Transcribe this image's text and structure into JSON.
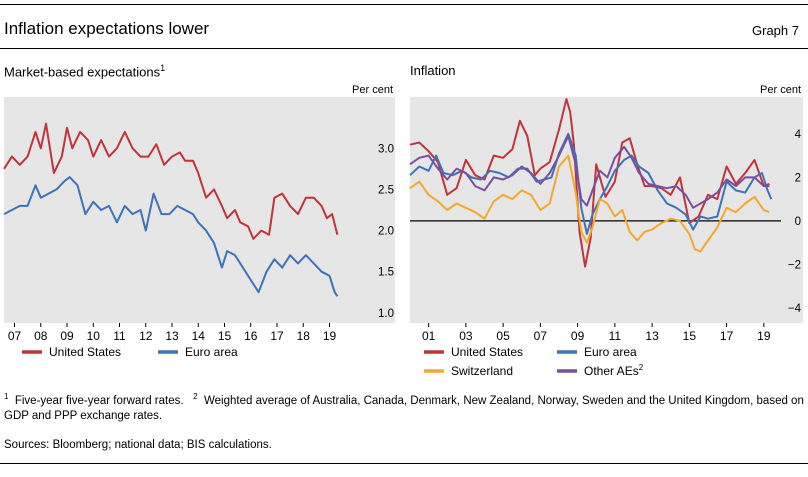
{
  "header": {
    "title": "Inflation expectations lower",
    "graph_label": "Graph 7"
  },
  "footnotes": {
    "note1_marker": "1",
    "note1": "Five-year five-year forward rates.",
    "note2_marker": "2",
    "note2": "Weighted average of Australia, Canada, Denmark, New Zealand, Norway, Sweden and the United Kingdom, based on GDP and PPP exchange rates.",
    "sources": "Sources: Bloomberg; national data; BIS calculations."
  },
  "colors": {
    "us": "#c0343c",
    "euro": "#3d73b8",
    "swiss": "#f4a928",
    "other": "#7a4fa0",
    "panel_bg": "#e6e6e6",
    "zero_line": "#000000"
  },
  "chart_data": [
    {
      "type": "line",
      "title": "Market-based expectations",
      "title_sup": "1",
      "unit_label": "Per cent",
      "y_axis_side": "right",
      "ylim": [
        0.9,
        3.6
      ],
      "y_ticks": [
        1.0,
        1.5,
        2.0,
        2.5,
        3.0
      ],
      "y_tick_labels": [
        "1.0",
        "1.5",
        "2.0",
        "2.5",
        "3.0"
      ],
      "xlim": [
        2006.6,
        2019.4
      ],
      "x_ticks": [
        2007,
        2008,
        2009,
        2010,
        2011,
        2012,
        2013,
        2014,
        2015,
        2016,
        2017,
        2018,
        2019
      ],
      "x_tick_labels": [
        "07",
        "08",
        "09",
        "10",
        "11",
        "12",
        "13",
        "14",
        "15",
        "16",
        "17",
        "18",
        "19"
      ],
      "grid": false,
      "legend_position": "bottom",
      "series": [
        {
          "name": "United States",
          "color_key": "us",
          "x": [
            2006.6,
            2006.9,
            2007.2,
            2007.5,
            2007.8,
            2008.0,
            2008.2,
            2008.5,
            2008.8,
            2009.0,
            2009.2,
            2009.5,
            2009.8,
            2010.0,
            2010.3,
            2010.6,
            2010.9,
            2011.2,
            2011.5,
            2011.8,
            2012.1,
            2012.4,
            2012.7,
            2013.0,
            2013.3,
            2013.5,
            2013.8,
            2014.0,
            2014.3,
            2014.6,
            2014.9,
            2015.1,
            2015.4,
            2015.6,
            2015.9,
            2016.1,
            2016.4,
            2016.7,
            2016.9,
            2017.2,
            2017.5,
            2017.8,
            2018.1,
            2018.4,
            2018.7,
            2018.9,
            2019.1,
            2019.3
          ],
          "y": [
            2.75,
            2.9,
            2.8,
            2.9,
            3.2,
            3.0,
            3.3,
            2.7,
            2.9,
            3.25,
            3.0,
            3.2,
            3.1,
            2.9,
            3.1,
            2.9,
            3.0,
            3.2,
            3.0,
            2.9,
            2.9,
            3.05,
            2.8,
            2.9,
            2.95,
            2.85,
            2.85,
            2.7,
            2.4,
            2.5,
            2.3,
            2.15,
            2.25,
            2.1,
            2.05,
            1.9,
            2.0,
            1.95,
            2.4,
            2.45,
            2.3,
            2.2,
            2.4,
            2.4,
            2.3,
            2.15,
            2.2,
            1.95
          ]
        },
        {
          "name": "Euro area",
          "color_key": "euro",
          "x": [
            2006.6,
            2006.9,
            2007.2,
            2007.5,
            2007.8,
            2008.0,
            2008.3,
            2008.6,
            2008.9,
            2009.1,
            2009.4,
            2009.7,
            2010.0,
            2010.3,
            2010.6,
            2010.9,
            2011.2,
            2011.5,
            2011.8,
            2012.0,
            2012.3,
            2012.6,
            2012.9,
            2013.2,
            2013.5,
            2013.8,
            2014.0,
            2014.3,
            2014.6,
            2014.9,
            2015.1,
            2015.4,
            2015.7,
            2016.0,
            2016.3,
            2016.6,
            2016.9,
            2017.2,
            2017.5,
            2017.8,
            2018.1,
            2018.4,
            2018.7,
            2019.0,
            2019.2,
            2019.3
          ],
          "y": [
            2.2,
            2.25,
            2.3,
            2.3,
            2.55,
            2.4,
            2.45,
            2.5,
            2.6,
            2.65,
            2.55,
            2.2,
            2.35,
            2.25,
            2.3,
            2.1,
            2.3,
            2.2,
            2.25,
            2.0,
            2.45,
            2.2,
            2.2,
            2.3,
            2.25,
            2.2,
            2.1,
            2.0,
            1.85,
            1.55,
            1.75,
            1.7,
            1.55,
            1.4,
            1.25,
            1.5,
            1.65,
            1.55,
            1.7,
            1.6,
            1.7,
            1.6,
            1.5,
            1.45,
            1.25,
            1.2
          ]
        }
      ]
    },
    {
      "type": "line",
      "title": "Inflation",
      "unit_label": "Per cent",
      "y_axis_side": "right",
      "ylim": [
        -4.6,
        5.6
      ],
      "y_ticks": [
        -4,
        -2,
        0,
        2,
        4
      ],
      "y_tick_labels": [
        "−4",
        "−2",
        "0",
        "2",
        "4"
      ],
      "xlim": [
        2000.0,
        2019.6
      ],
      "x_ticks": [
        2001,
        2003,
        2005,
        2007,
        2009,
        2011,
        2013,
        2015,
        2017,
        2019
      ],
      "x_tick_labels": [
        "01",
        "03",
        "05",
        "07",
        "09",
        "11",
        "13",
        "15",
        "17",
        "19"
      ],
      "grid": false,
      "zero_line": true,
      "legend_position": "bottom",
      "series": [
        {
          "name": "United States",
          "color_key": "us",
          "x": [
            2000.0,
            2000.5,
            2001.0,
            2001.5,
            2002.0,
            2002.5,
            2003.0,
            2003.5,
            2004.0,
            2004.5,
            2005.0,
            2005.5,
            2005.9,
            2006.3,
            2006.7,
            2007.0,
            2007.5,
            2008.0,
            2008.4,
            2008.6,
            2008.8,
            2009.1,
            2009.4,
            2009.7,
            2010.0,
            2010.5,
            2011.0,
            2011.4,
            2011.8,
            2012.2,
            2012.6,
            2013.0,
            2013.5,
            2014.0,
            2014.5,
            2015.0,
            2015.5,
            2016.0,
            2016.5,
            2017.0,
            2017.5,
            2018.0,
            2018.5,
            2019.0,
            2019.3
          ],
          "y": [
            3.5,
            3.6,
            3.2,
            2.7,
            1.2,
            1.5,
            2.8,
            2.1,
            1.9,
            3.0,
            2.9,
            3.3,
            4.6,
            3.9,
            2.1,
            2.4,
            2.7,
            4.2,
            5.6,
            5.0,
            3.5,
            -0.5,
            -2.1,
            -0.8,
            2.6,
            1.1,
            1.8,
            3.6,
            3.8,
            2.6,
            1.6,
            1.6,
            1.5,
            1.2,
            2.0,
            -0.1,
            0.2,
            1.2,
            1.0,
            2.5,
            1.7,
            2.2,
            2.8,
            1.6,
            1.7
          ]
        },
        {
          "name": "Euro area",
          "color_key": "euro",
          "x": [
            2000.0,
            2000.5,
            2001.0,
            2001.4,
            2001.8,
            2002.3,
            2002.8,
            2003.3,
            2003.8,
            2004.3,
            2004.8,
            2005.3,
            2005.8,
            2006.3,
            2006.8,
            2007.2,
            2007.6,
            2008.0,
            2008.5,
            2008.9,
            2009.2,
            2009.5,
            2009.8,
            2010.2,
            2010.6,
            2011.0,
            2011.5,
            2011.9,
            2012.3,
            2012.8,
            2013.3,
            2013.8,
            2014.3,
            2014.8,
            2015.2,
            2015.6,
            2016.0,
            2016.5,
            2017.0,
            2017.5,
            2018.0,
            2018.5,
            2018.9,
            2019.2,
            2019.4
          ],
          "y": [
            2.1,
            2.5,
            2.3,
            3.0,
            2.2,
            2.1,
            2.3,
            2.0,
            1.9,
            2.3,
            2.2,
            2.0,
            2.4,
            2.4,
            1.8,
            1.9,
            2.0,
            3.1,
            4.0,
            3.0,
            0.6,
            -0.6,
            0.3,
            1.0,
            1.6,
            2.3,
            2.8,
            3.0,
            2.5,
            2.2,
            1.4,
            0.8,
            0.6,
            0.3,
            -0.4,
            0.2,
            0.1,
            0.2,
            1.8,
            1.4,
            1.3,
            2.0,
            2.2,
            1.4,
            1.0
          ]
        },
        {
          "name": "Switzerland",
          "color_key": "swiss",
          "x": [
            2000.0,
            2000.5,
            2001.0,
            2001.5,
            2002.0,
            2002.5,
            2003.0,
            2003.5,
            2004.0,
            2004.5,
            2005.0,
            2005.5,
            2006.0,
            2006.5,
            2007.0,
            2007.5,
            2008.0,
            2008.5,
            2008.9,
            2009.2,
            2009.5,
            2009.8,
            2010.2,
            2010.6,
            2011.0,
            2011.4,
            2011.8,
            2012.2,
            2012.6,
            2013.0,
            2013.5,
            2014.0,
            2014.5,
            2015.0,
            2015.3,
            2015.6,
            2016.0,
            2016.5,
            2017.0,
            2017.5,
            2018.0,
            2018.5,
            2019.0,
            2019.3
          ],
          "y": [
            1.5,
            1.8,
            1.2,
            0.9,
            0.5,
            0.8,
            0.6,
            0.4,
            0.1,
            0.9,
            1.2,
            1.0,
            1.4,
            1.2,
            0.5,
            0.8,
            2.5,
            3.0,
            1.3,
            -0.5,
            -1.0,
            -0.3,
            1.0,
            0.8,
            0.2,
            0.5,
            -0.5,
            -0.9,
            -0.5,
            -0.4,
            -0.1,
            0.1,
            0.0,
            -0.6,
            -1.3,
            -1.4,
            -0.9,
            -0.3,
            0.6,
            0.4,
            0.8,
            1.1,
            0.5,
            0.4
          ]
        },
        {
          "name": "Other AEs",
          "name_sup": "2",
          "color_key": "other",
          "x": [
            2000.0,
            2000.5,
            2001.0,
            2001.5,
            2002.0,
            2002.5,
            2003.0,
            2003.5,
            2004.0,
            2004.5,
            2005.0,
            2005.5,
            2006.0,
            2006.5,
            2007.0,
            2007.5,
            2008.0,
            2008.5,
            2008.9,
            2009.2,
            2009.5,
            2009.8,
            2010.2,
            2010.6,
            2011.0,
            2011.5,
            2011.9,
            2012.3,
            2012.8,
            2013.3,
            2013.8,
            2014.3,
            2014.8,
            2015.2,
            2015.6,
            2016.0,
            2016.5,
            2017.0,
            2017.5,
            2018.0,
            2018.5,
            2019.0,
            2019.3
          ],
          "y": [
            2.6,
            2.9,
            3.0,
            2.4,
            1.9,
            2.4,
            2.2,
            1.6,
            1.4,
            2.0,
            1.9,
            2.1,
            2.5,
            2.2,
            1.7,
            2.2,
            3.0,
            3.9,
            2.6,
            1.0,
            0.7,
            1.4,
            2.3,
            2.0,
            2.9,
            3.4,
            2.9,
            2.2,
            1.7,
            1.6,
            1.5,
            1.6,
            1.2,
            0.6,
            0.8,
            1.0,
            1.3,
            1.9,
            1.6,
            2.0,
            2.0,
            1.6,
            1.6
          ]
        }
      ]
    }
  ]
}
